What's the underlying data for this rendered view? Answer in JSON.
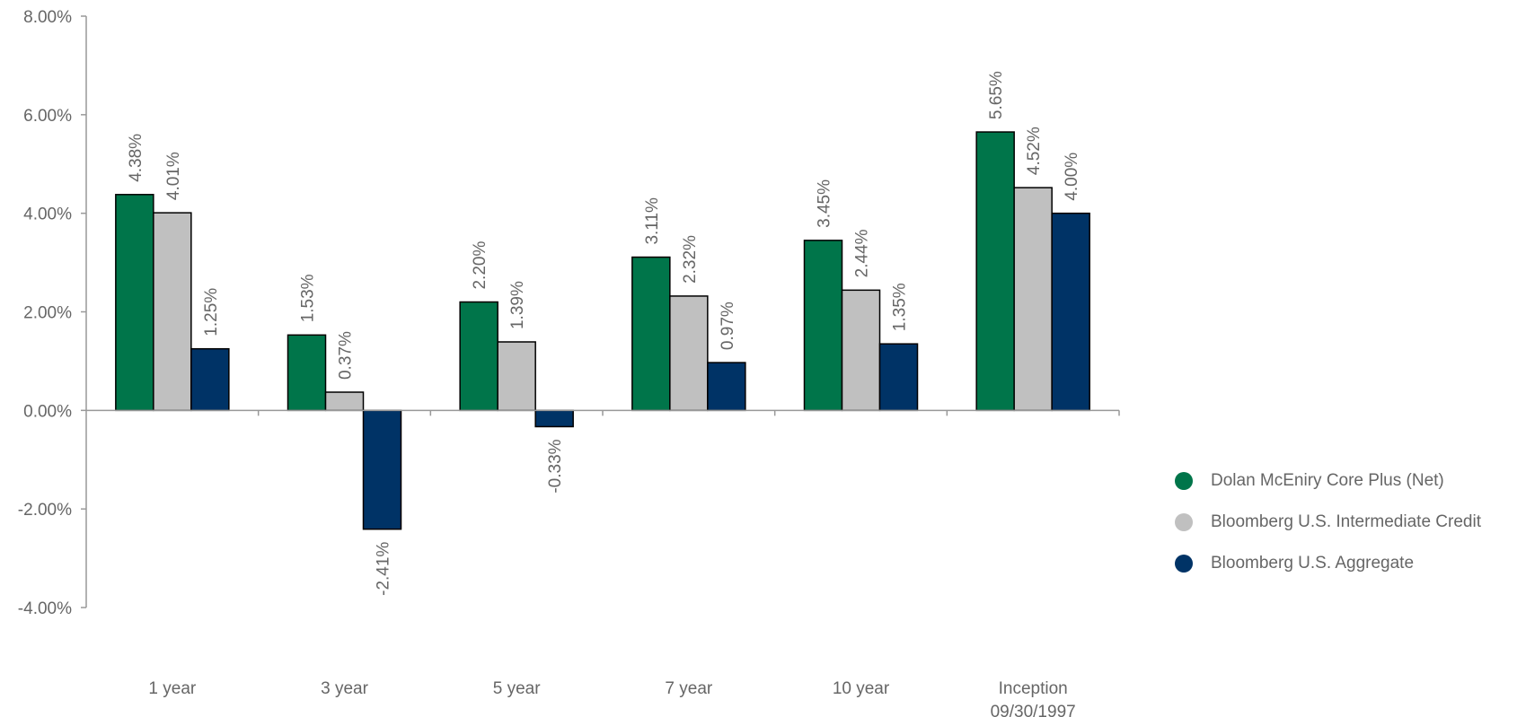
{
  "chart_data": {
    "type": "bar",
    "categories": [
      "1 year",
      "3 year",
      "5 year",
      "7 year",
      "10 year",
      [
        "Inception",
        "09/30/1997"
      ]
    ],
    "series": [
      {
        "name": "Dolan McEniry Core Plus (Net)",
        "color": "#00754a",
        "values": [
          4.38,
          1.53,
          2.2,
          3.11,
          3.45,
          5.65
        ],
        "labels": [
          "4.38%",
          "1.53%",
          "2.20%",
          "3.11%",
          "3.45%",
          "5.65%"
        ]
      },
      {
        "name": "Bloomberg U.S. Intermediate Credit",
        "color": "#c0c0c0",
        "values": [
          4.01,
          0.37,
          1.39,
          2.32,
          2.44,
          4.52
        ],
        "labels": [
          "4.01%",
          "0.37%",
          "1.39%",
          "2.32%",
          "2.44%",
          "4.52%"
        ]
      },
      {
        "name": "Bloomberg U.S. Aggregate",
        "color": "#003366",
        "values": [
          1.25,
          -2.41,
          -0.33,
          0.97,
          1.35,
          4.0
        ],
        "labels": [
          "1.25%",
          "-2.41%",
          "-0.33%",
          "0.97%",
          "1.35%",
          "4.00%"
        ]
      }
    ],
    "yticks": [
      8,
      6,
      4,
      2,
      0,
      -2,
      -4
    ],
    "ytick_labels": [
      "8.00%",
      "6.00%",
      "4.00%",
      "2.00%",
      "0.00%",
      "-2.00%",
      "-4.00%"
    ],
    "ylim": [
      -4,
      8
    ],
    "legend_position": "right"
  }
}
